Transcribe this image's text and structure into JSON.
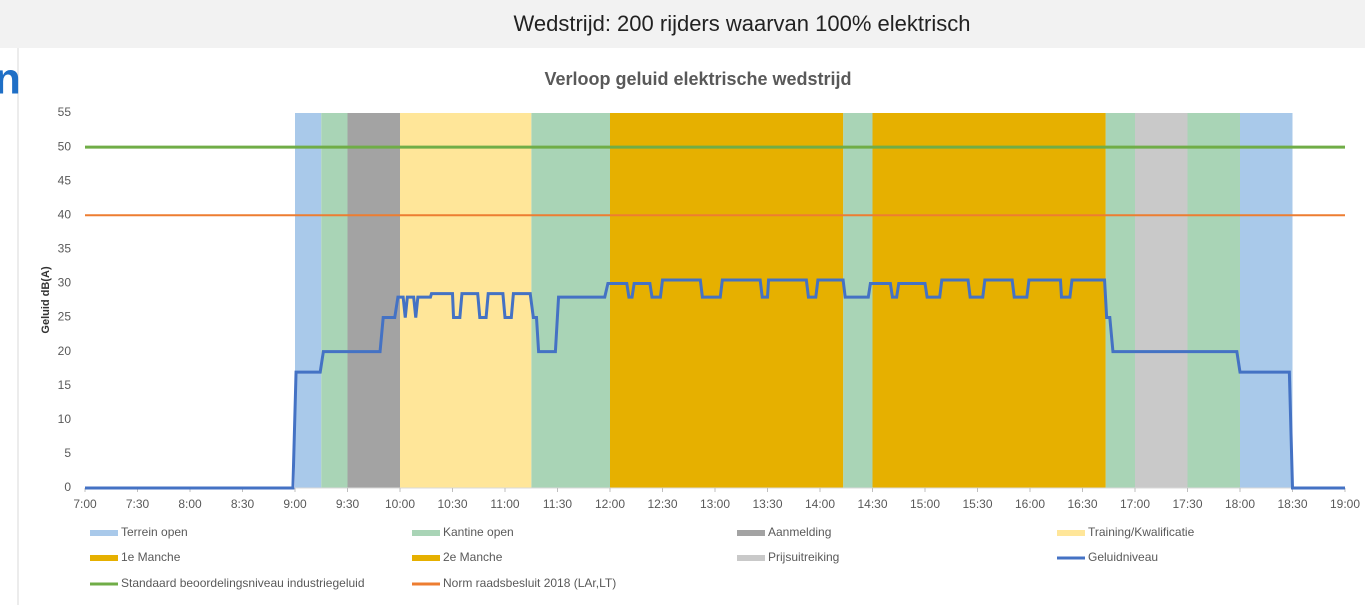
{
  "header": {
    "title": "Wedstrijd: 200 rijders waarvan 100% elektrisch",
    "fragment": "n"
  },
  "chart_data": {
    "type": "line",
    "title": "Verloop geluid elektrische wedstrijd",
    "y_label": "Geluid dB(A)",
    "xlim": [
      7,
      19
    ],
    "ylim": [
      0,
      55
    ],
    "yticks": [
      0,
      5,
      10,
      15,
      20,
      25,
      30,
      35,
      40,
      45,
      50,
      55
    ],
    "xticks": [
      {
        "value": 7,
        "label": "7:00"
      },
      {
        "value": 7.5,
        "label": "7:30"
      },
      {
        "value": 8,
        "label": "8:00"
      },
      {
        "value": 8.5,
        "label": "8:30"
      },
      {
        "value": 9,
        "label": "9:00"
      },
      {
        "value": 9.5,
        "label": "9:30"
      },
      {
        "value": 10,
        "label": "10:00"
      },
      {
        "value": 10.5,
        "label": "10:30"
      },
      {
        "value": 11,
        "label": "11:00"
      },
      {
        "value": 11.5,
        "label": "11:30"
      },
      {
        "value": 12,
        "label": "12:00"
      },
      {
        "value": 12.5,
        "label": "12:30"
      },
      {
        "value": 13,
        "label": "13:00"
      },
      {
        "value": 13.5,
        "label": "13:30"
      },
      {
        "value": 14,
        "label": "14:00"
      },
      {
        "value": 14.5,
        "label": "14:30"
      },
      {
        "value": 15,
        "label": "15:00"
      },
      {
        "value": 15.5,
        "label": "15:30"
      },
      {
        "value": 16,
        "label": "16:00"
      },
      {
        "value": 16.5,
        "label": "16:30"
      },
      {
        "value": 17,
        "label": "17:00"
      },
      {
        "value": 17.5,
        "label": "17:30"
      },
      {
        "value": 18,
        "label": "18:00"
      },
      {
        "value": 18.5,
        "label": "18:30"
      },
      {
        "value": 19,
        "label": "19:00"
      }
    ],
    "series": [
      {
        "name": "Terrein open",
        "kind": "band",
        "color": "#a9c9ea",
        "intervals": [
          [
            9.0,
            9.25
          ],
          [
            18.0,
            18.5
          ]
        ]
      },
      {
        "name": "Kantine open",
        "kind": "band",
        "color": "#a9d4b6",
        "intervals": [
          [
            9.25,
            9.5
          ],
          [
            11.25,
            12.0
          ],
          [
            14.22,
            14.5
          ],
          [
            16.72,
            17.0
          ],
          [
            17.5,
            18.0
          ]
        ]
      },
      {
        "name": "Aanmelding",
        "kind": "band",
        "color": "#a3a3a3",
        "intervals": [
          [
            9.5,
            10.0
          ]
        ]
      },
      {
        "name": "Training/Kwalificatie",
        "kind": "band",
        "color": "#ffe699",
        "intervals": [
          [
            10.0,
            11.25
          ]
        ]
      },
      {
        "name": "1e Manche",
        "kind": "band",
        "color": "#e6b000",
        "intervals": [
          [
            12.0,
            14.22
          ]
        ]
      },
      {
        "name": "2e Manche",
        "kind": "band",
        "color": "#e6b000",
        "intervals": [
          [
            14.5,
            16.72
          ]
        ]
      },
      {
        "name": "Prijsuitreiking",
        "kind": "band",
        "color": "#c9c9c9",
        "intervals": [
          [
            17.0,
            17.5
          ]
        ]
      },
      {
        "name": "Geluidniveau",
        "kind": "line",
        "color": "#4472c4",
        "x": [
          7.0,
          8.98,
          9.01,
          9.24,
          9.27,
          9.81,
          9.84,
          9.95,
          9.98,
          10.03,
          10.05,
          10.07,
          10.13,
          10.15,
          10.17,
          10.29,
          10.3,
          10.5,
          10.51,
          10.57,
          10.59,
          10.74,
          10.76,
          10.82,
          10.84,
          10.98,
          11.0,
          11.06,
          11.08,
          11.24,
          11.27,
          11.3,
          11.32,
          11.48,
          11.51,
          11.95,
          11.98,
          12.16,
          12.18,
          12.21,
          12.23,
          12.38,
          12.4,
          12.48,
          12.5,
          12.86,
          12.88,
          13.05,
          13.07,
          13.43,
          13.45,
          13.5,
          13.51,
          13.87,
          13.89,
          13.96,
          13.98,
          14.22,
          14.24,
          14.46,
          14.48,
          14.67,
          14.69,
          14.73,
          14.75,
          15.0,
          15.02,
          15.14,
          15.16,
          15.41,
          15.43,
          15.55,
          15.57,
          15.83,
          15.85,
          15.97,
          15.99,
          16.29,
          16.3,
          16.38,
          16.4,
          16.71,
          16.73,
          16.76,
          16.79,
          17.97,
          18.0,
          18.47,
          18.5,
          19.0
        ],
        "values": [
          0,
          0,
          17,
          17,
          20,
          20,
          25,
          25,
          28,
          28,
          25,
          28,
          28,
          25,
          28,
          28,
          28.5,
          28.5,
          25,
          25,
          28.5,
          28.5,
          25,
          25,
          28.5,
          28.5,
          25,
          25,
          28.5,
          28.5,
          25,
          25,
          20,
          20,
          28,
          28,
          30,
          30,
          28,
          28,
          30,
          30,
          28,
          28,
          30.5,
          30.5,
          28,
          28,
          30.5,
          30.5,
          28,
          28,
          30.5,
          30.5,
          28,
          28,
          30.5,
          30.5,
          28,
          28,
          30,
          30,
          28,
          28,
          30,
          30,
          28,
          28,
          30.5,
          30.5,
          28,
          28,
          30.5,
          30.5,
          28,
          28,
          30.5,
          30.5,
          28,
          28,
          30.5,
          30.5,
          25,
          25,
          20,
          20,
          17,
          17,
          0,
          0
        ]
      },
      {
        "name": "Standaard beoordelingsniveau industriegeluid",
        "kind": "hline",
        "color": "#70ad47",
        "value": 50
      },
      {
        "name": "Norm raadsbesluit 2018 (LAr,LT)",
        "kind": "hline",
        "color": "#ed7d31",
        "value": 40
      }
    ]
  }
}
